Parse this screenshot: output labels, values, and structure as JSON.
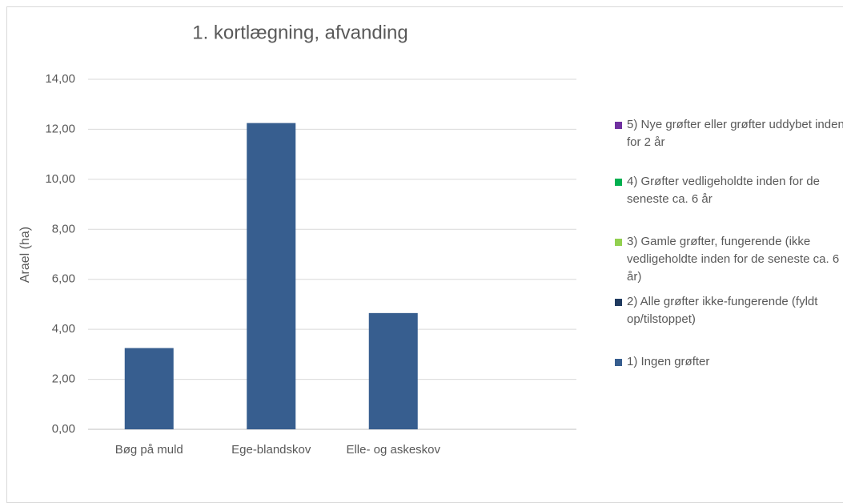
{
  "chart_data": {
    "type": "stacked-bar",
    "title": "1. kortlægning, afvanding",
    "y_label": "Arael (ha)",
    "categories": [
      "Bøg på muld",
      "Ege-blandskov",
      "Elle- og askeskov",
      null
    ],
    "series": [
      {
        "name": "1) Ingen grøfter",
        "color": "#375e8f",
        "values": [
          3.25,
          12.25,
          4.65,
          null
        ]
      },
      {
        "name": "2) Alle grøfter ikke-fungerende (fyldt op/tilstoppet)",
        "color": "#1f3a5f",
        "values": [
          null,
          null,
          null,
          null
        ]
      },
      {
        "name": "3) Gamle grøfter, fungerende (ikke vedligeholdte inden for de seneste ca. 6 år)",
        "color": "#92d050",
        "values": [
          null,
          null,
          null,
          null
        ]
      },
      {
        "name": "4) Grøfter vedligeholdte inden for de seneste ca. 6 år",
        "color": "#00b050",
        "values": [
          null,
          null,
          null,
          null
        ]
      },
      {
        "name": "5) Nye grøfter eller grøfter uddybet inden for 2 år",
        "color": "#7030a0",
        "values": [
          null,
          null,
          null,
          null
        ]
      }
    ],
    "ylim": [
      0,
      14
    ],
    "yticks": [
      {
        "value": 0,
        "label": "0,00"
      },
      {
        "value": 2,
        "label": "2,00"
      },
      {
        "value": 4,
        "label": "4,00"
      },
      {
        "value": 6,
        "label": "6,00"
      },
      {
        "value": 8,
        "label": "8,00"
      },
      {
        "value": 10,
        "label": "10,00"
      },
      {
        "value": 12,
        "label": "12,00"
      },
      {
        "value": 14,
        "label": "14,00"
      }
    ],
    "grid": true,
    "legend": "right"
  }
}
